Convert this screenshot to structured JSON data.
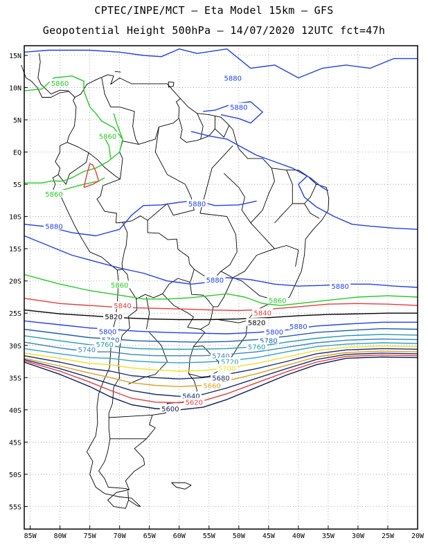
{
  "header": {
    "title_line1": "CPTEC/INPE/MCT  –  Eta Model 15km  –  GFS",
    "title_line2": "Geopotential Height 500hPa  –  14/07/2020 12UTC fct=47h"
  },
  "map": {
    "lon_range": [
      -86,
      -20
    ],
    "lat_range": [
      -58.5,
      16.5
    ],
    "lon_ticks": [
      "85W",
      "80W",
      "75W",
      "70W",
      "65W",
      "60W",
      "55W",
      "50W",
      "45W",
      "40W",
      "35W",
      "30W",
      "25W",
      "20W"
    ],
    "lat_ticks": [
      "15N",
      "10N",
      "5N",
      "EQ",
      "5S",
      "10S",
      "15S",
      "20S",
      "25S",
      "30S",
      "35S",
      "40S",
      "45S",
      "50S",
      "55S"
    ],
    "grid": "dotted"
  },
  "contours": [
    {
      "value": "5880",
      "color": "#1f3ff0",
      "label_points": [
        [
          -51,
          11.5
        ],
        [
          -40,
          -27
        ],
        [
          -50,
          7
        ],
        [
          -81,
          -11.5
        ],
        [
          -57,
          -8
        ],
        [
          -33,
          -20.8
        ],
        [
          -54,
          -19.8
        ]
      ]
    },
    {
      "value": "5860",
      "color": "#22cc22",
      "label_points": [
        [
          -80,
          10.7
        ],
        [
          -72,
          2.5
        ],
        [
          -81,
          -6.5
        ],
        [
          -70,
          -20.6
        ],
        [
          -43.5,
          -23
        ]
      ]
    },
    {
      "value": "5840",
      "color": "#e83a3a",
      "label_points": [
        [
          -69.5,
          -23.8
        ],
        [
          -46,
          -24.9
        ]
      ]
    },
    {
      "value": "5820",
      "color": "#000000",
      "label_points": [
        [
          -71,
          -25.5
        ],
        [
          -47,
          -26.4
        ]
      ]
    },
    {
      "value": "5800",
      "color": "#1f3ff0",
      "label_points": [
        [
          -72,
          -27.8
        ],
        [
          -44,
          -27.9
        ]
      ]
    },
    {
      "value": "5780",
      "color": "#1a5fb0",
      "label_points": [
        [
          -71.5,
          -29.1
        ],
        [
          -45,
          -29.2
        ]
      ]
    },
    {
      "value": "5760",
      "color": "#1f9bb0",
      "label_points": [
        [
          -72.5,
          -29.8
        ],
        [
          -47,
          -30.2
        ]
      ]
    },
    {
      "value": "5740",
      "color": "#3a84c4",
      "label_points": [
        [
          -75.5,
          -30.6
        ],
        [
          -53,
          -31.6
        ]
      ]
    },
    {
      "value": "5720",
      "color": "#2ea3c8",
      "label_points": [
        [
          -51.5,
          -32.5
        ]
      ]
    },
    {
      "value": "5700",
      "color": "#f0e020",
      "label_points": [
        [
          -52,
          -33.5
        ]
      ]
    },
    {
      "value": "5680",
      "color": "#182a7a",
      "label_points": [
        [
          -53,
          -35
        ]
      ]
    },
    {
      "value": "5660",
      "color": "#e0a020",
      "label_points": [
        [
          -54.5,
          -36.2
        ]
      ]
    },
    {
      "value": "5640",
      "color": "#14306e",
      "label_points": [
        [
          -58,
          -37.8
        ]
      ]
    },
    {
      "value": "5620",
      "color": "#e83a3a",
      "label_points": [
        [
          -57.5,
          -38.8
        ]
      ]
    },
    {
      "value": "5600",
      "color": "#0c1a5a",
      "label_points": [
        [
          -61.5,
          -39.8
        ]
      ]
    }
  ]
}
